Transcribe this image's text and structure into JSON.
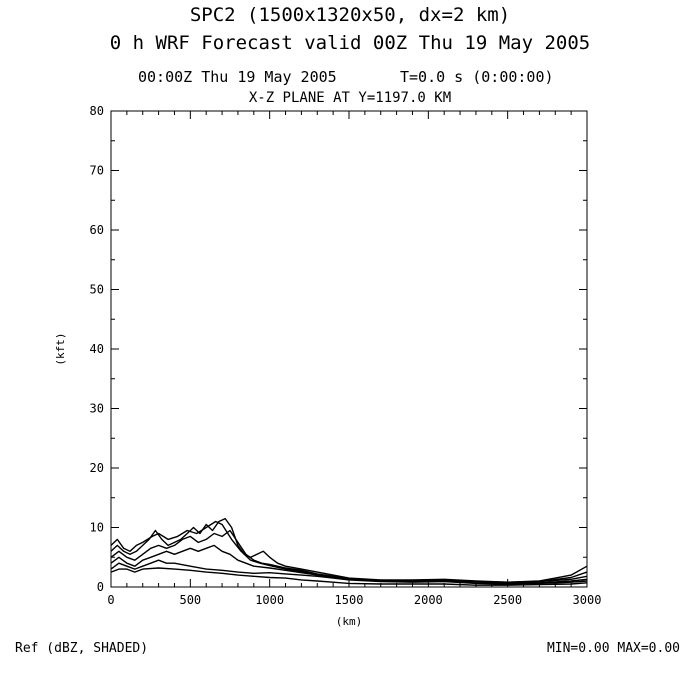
{
  "header": {
    "title_line1": "SPC2 (1500x1320x50, dx=2 km)",
    "title_line2": "0 h WRF Forecast valid 00Z Thu 19 May 2005",
    "time_left": "00:00Z Thu 19 May 2005",
    "time_right": "T=0.0 s (0:00:00)",
    "plane": "X-Z PLANE AT Y=1197.0 KM"
  },
  "footer": {
    "field": "Ref (dBZ, SHADED)",
    "minmax": "MIN=0.00 MAX=0.00"
  },
  "chart_data": {
    "type": "line",
    "xlabel": "(km)",
    "ylabel": "(kft)",
    "xlim": [
      0,
      3000
    ],
    "ylim": [
      0,
      80
    ],
    "x_ticks": [
      0,
      500,
      1000,
      1500,
      2000,
      2500,
      3000
    ],
    "y_ticks": [
      0,
      10,
      20,
      30,
      40,
      50,
      60,
      70,
      80
    ],
    "grid": false,
    "legend": "none",
    "series": [
      {
        "values": [
          [
            0,
            6
          ],
          [
            40,
            7
          ],
          [
            80,
            6
          ],
          [
            120,
            5.5
          ],
          [
            160,
            6
          ],
          [
            200,
            7
          ],
          [
            240,
            8
          ],
          [
            280,
            9.5
          ],
          [
            320,
            8
          ],
          [
            360,
            7
          ],
          [
            400,
            7.5
          ],
          [
            440,
            8
          ],
          [
            480,
            9
          ],
          [
            520,
            10
          ],
          [
            560,
            9
          ],
          [
            600,
            10.5
          ],
          [
            640,
            9.5
          ],
          [
            680,
            11
          ],
          [
            720,
            11.5
          ],
          [
            760,
            10
          ],
          [
            800,
            7
          ],
          [
            840,
            5.5
          ],
          [
            880,
            5
          ],
          [
            920,
            5.5
          ],
          [
            960,
            6
          ],
          [
            1000,
            5
          ],
          [
            1050,
            4
          ],
          [
            1100,
            3.5
          ],
          [
            1200,
            3
          ],
          [
            1300,
            2.5
          ],
          [
            1400,
            2
          ],
          [
            1500,
            1.5
          ],
          [
            1700,
            1.2
          ],
          [
            1900,
            1.2
          ],
          [
            2100,
            1.3
          ],
          [
            2300,
            1
          ],
          [
            2500,
            0.8
          ],
          [
            2700,
            1
          ],
          [
            2800,
            1.5
          ],
          [
            2900,
            2
          ],
          [
            3000,
            3.5
          ]
        ]
      },
      {
        "values": [
          [
            0,
            5
          ],
          [
            50,
            6
          ],
          [
            100,
            5
          ],
          [
            150,
            4.5
          ],
          [
            200,
            5.5
          ],
          [
            250,
            6.5
          ],
          [
            300,
            7
          ],
          [
            350,
            6.5
          ],
          [
            400,
            7
          ],
          [
            450,
            8
          ],
          [
            500,
            8.5
          ],
          [
            550,
            7.5
          ],
          [
            600,
            8
          ],
          [
            650,
            9
          ],
          [
            700,
            8.5
          ],
          [
            750,
            9.5
          ],
          [
            800,
            7.5
          ],
          [
            850,
            5.5
          ],
          [
            900,
            4.5
          ],
          [
            950,
            4
          ],
          [
            1000,
            3.8
          ],
          [
            1100,
            3.2
          ],
          [
            1200,
            2.8
          ],
          [
            1300,
            2.2
          ],
          [
            1400,
            1.8
          ],
          [
            1500,
            1.4
          ],
          [
            1700,
            1.1
          ],
          [
            1900,
            1
          ],
          [
            2100,
            1.1
          ],
          [
            2300,
            0.9
          ],
          [
            2500,
            0.7
          ],
          [
            2700,
            0.9
          ],
          [
            2900,
            1.3
          ],
          [
            3000,
            1.8
          ]
        ]
      },
      {
        "values": [
          [
            0,
            4
          ],
          [
            50,
            5
          ],
          [
            100,
            4
          ],
          [
            150,
            3.5
          ],
          [
            200,
            4.5
          ],
          [
            250,
            5
          ],
          [
            300,
            5.5
          ],
          [
            350,
            6
          ],
          [
            400,
            5.5
          ],
          [
            450,
            6
          ],
          [
            500,
            6.5
          ],
          [
            550,
            6
          ],
          [
            600,
            6.5
          ],
          [
            650,
            7
          ],
          [
            700,
            6
          ],
          [
            750,
            5.5
          ],
          [
            800,
            4.5
          ],
          [
            850,
            4
          ],
          [
            900,
            3.5
          ],
          [
            1000,
            3.2
          ],
          [
            1100,
            2.8
          ],
          [
            1200,
            2.4
          ],
          [
            1300,
            2
          ],
          [
            1400,
            1.6
          ],
          [
            1500,
            1.3
          ],
          [
            1700,
            1
          ],
          [
            1900,
            0.9
          ],
          [
            2100,
            1
          ],
          [
            2300,
            0.8
          ],
          [
            2500,
            0.6
          ],
          [
            2700,
            0.7
          ],
          [
            2900,
            1
          ],
          [
            3000,
            1.3
          ]
        ]
      },
      {
        "values": [
          [
            0,
            3
          ],
          [
            50,
            4
          ],
          [
            100,
            3.5
          ],
          [
            150,
            3
          ],
          [
            200,
            3.5
          ],
          [
            250,
            4
          ],
          [
            300,
            4.5
          ],
          [
            350,
            4
          ],
          [
            400,
            4
          ],
          [
            500,
            3.5
          ],
          [
            600,
            3
          ],
          [
            700,
            2.8
          ],
          [
            800,
            2.5
          ],
          [
            900,
            2.3
          ],
          [
            1000,
            2.4
          ],
          [
            1100,
            2.2
          ],
          [
            1200,
            2
          ],
          [
            1300,
            1.8
          ],
          [
            1400,
            1.5
          ],
          [
            1500,
            1.2
          ],
          [
            1700,
            0.9
          ],
          [
            1900,
            0.8
          ],
          [
            2100,
            0.9
          ],
          [
            2300,
            0.6
          ],
          [
            2500,
            0.5
          ],
          [
            2700,
            0.6
          ],
          [
            2900,
            0.8
          ],
          [
            3000,
            1
          ]
        ]
      },
      {
        "values": [
          [
            0,
            2.5
          ],
          [
            50,
            3
          ],
          [
            100,
            3
          ],
          [
            150,
            2.5
          ],
          [
            200,
            3
          ],
          [
            300,
            3.2
          ],
          [
            400,
            3
          ],
          [
            500,
            2.8
          ],
          [
            600,
            2.5
          ],
          [
            700,
            2.3
          ],
          [
            800,
            2
          ],
          [
            900,
            1.8
          ],
          [
            1000,
            1.6
          ],
          [
            1100,
            1.5
          ],
          [
            1200,
            1.2
          ],
          [
            1300,
            1
          ],
          [
            1400,
            0.8
          ],
          [
            1500,
            0.6
          ],
          [
            1700,
            0.5
          ],
          [
            1900,
            0.5
          ],
          [
            2100,
            0.5
          ],
          [
            2300,
            0.3
          ],
          [
            2500,
            0.3
          ],
          [
            2700,
            0.4
          ],
          [
            2900,
            0.5
          ],
          [
            3000,
            0.7
          ]
        ]
      },
      {
        "values": [
          [
            0,
            7
          ],
          [
            40,
            8
          ],
          [
            80,
            6.5
          ],
          [
            120,
            6
          ],
          [
            160,
            7
          ],
          [
            200,
            7.5
          ],
          [
            260,
            8.5
          ],
          [
            300,
            9
          ],
          [
            360,
            8
          ],
          [
            420,
            8.5
          ],
          [
            480,
            9.5
          ],
          [
            540,
            9
          ],
          [
            600,
            10
          ],
          [
            660,
            11
          ],
          [
            700,
            10.5
          ],
          [
            760,
            8
          ],
          [
            820,
            6
          ],
          [
            880,
            4.5
          ],
          [
            940,
            4
          ],
          [
            1000,
            3.6
          ],
          [
            1100,
            3
          ],
          [
            1200,
            2.6
          ],
          [
            1300,
            2.1
          ],
          [
            1400,
            1.7
          ],
          [
            1500,
            1.4
          ],
          [
            1700,
            1.1
          ],
          [
            1900,
            1.1
          ],
          [
            2100,
            1.2
          ],
          [
            2300,
            0.9
          ],
          [
            2500,
            0.8
          ],
          [
            2700,
            0.9
          ],
          [
            2900,
            1.6
          ],
          [
            3000,
            2.5
          ]
        ]
      }
    ]
  }
}
